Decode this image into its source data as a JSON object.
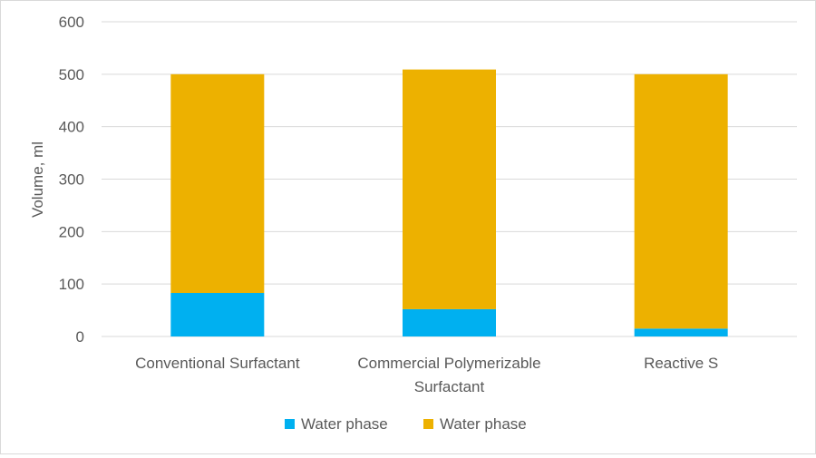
{
  "chart_data": {
    "type": "bar",
    "stacked": true,
    "categories": [
      [
        "Conventional Surfactant"
      ],
      [
        "Commercial Polymerizable",
        "Surfactant"
      ],
      [
        "Reactive S"
      ]
    ],
    "series": [
      {
        "name": "Water phase",
        "color": "#00B0F0",
        "values": [
          83,
          52,
          15
        ]
      },
      {
        "name": "Water phase",
        "color": "#EDB100",
        "values": [
          417,
          457,
          485
        ]
      }
    ],
    "title": "",
    "xlabel": "",
    "ylabel": "Volume, ml",
    "ylim": [
      0,
      600
    ],
    "yticks": [
      0,
      100,
      200,
      300,
      400,
      500,
      600
    ],
    "grid": true,
    "legend": "bottom"
  }
}
